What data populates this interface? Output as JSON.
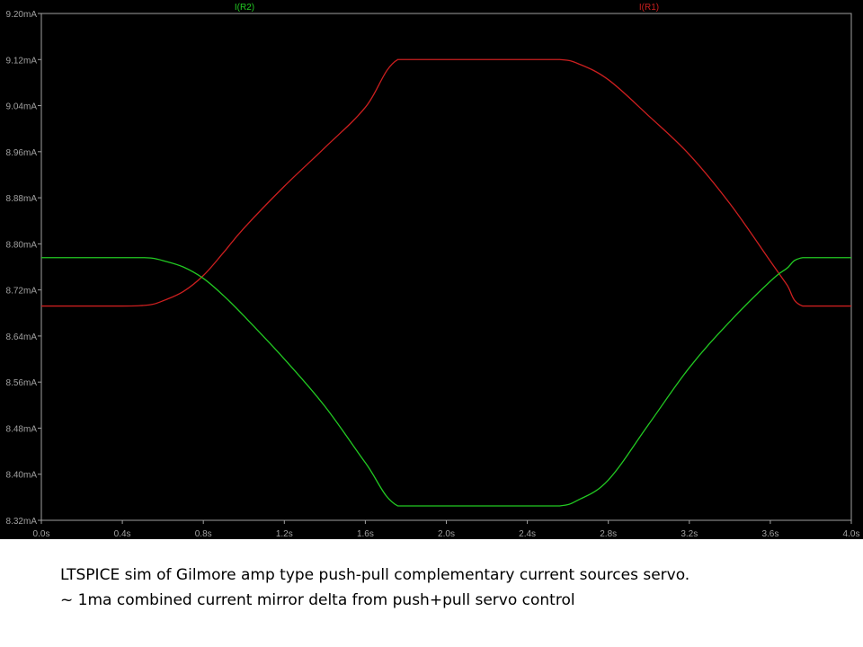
{
  "chart_data": {
    "type": "line",
    "x": [
      0.0,
      0.4,
      0.5,
      0.55,
      0.6,
      0.7,
      0.8,
      0.9,
      1.0,
      1.2,
      1.4,
      1.6,
      1.76,
      2.0,
      2.4,
      2.56,
      2.65,
      2.8,
      3.0,
      3.2,
      3.4,
      3.6,
      3.68,
      3.76,
      4.0
    ],
    "series": [
      {
        "name": "I(R1)",
        "color": "#cc1f1f",
        "values": [
          8.692,
          8.692,
          8.693,
          8.695,
          8.701,
          8.717,
          8.745,
          8.785,
          8.827,
          8.9,
          8.967,
          9.037,
          9.12,
          9.12,
          9.12,
          9.12,
          9.113,
          9.085,
          9.022,
          8.955,
          8.87,
          8.77,
          8.73,
          8.692,
          8.692
        ]
      },
      {
        "name": "I(R2)",
        "color": "#22c922",
        "values": [
          8.776,
          8.776,
          8.776,
          8.775,
          8.771,
          8.76,
          8.74,
          8.71,
          8.675,
          8.6,
          8.518,
          8.42,
          8.345,
          8.345,
          8.345,
          8.345,
          8.355,
          8.39,
          8.487,
          8.585,
          8.665,
          8.735,
          8.757,
          8.776,
          8.776
        ]
      }
    ],
    "x_ticks": [
      "0.0s",
      "0.4s",
      "0.8s",
      "1.2s",
      "1.6s",
      "2.0s",
      "2.4s",
      "2.8s",
      "3.2s",
      "3.6s",
      "4.0s"
    ],
    "y_ticks": [
      "8.32mA",
      "8.40mA",
      "8.48mA",
      "8.56mA",
      "8.64mA",
      "8.72mA",
      "8.80mA",
      "8.88mA",
      "8.96mA",
      "9.04mA",
      "9.12mA",
      "9.20mA"
    ],
    "xlim": [
      0,
      4
    ],
    "ylim": [
      8.32,
      9.2
    ],
    "grid": false,
    "legend_placement": "top",
    "background": "#000000",
    "axis_color": "#a0a0a0"
  },
  "caption": {
    "line1": "LTSPICE sim of Gilmore amp type push-pull complementary current sources servo.",
    "line2": "~ 1ma combined current mirror delta from push+pull servo control"
  }
}
